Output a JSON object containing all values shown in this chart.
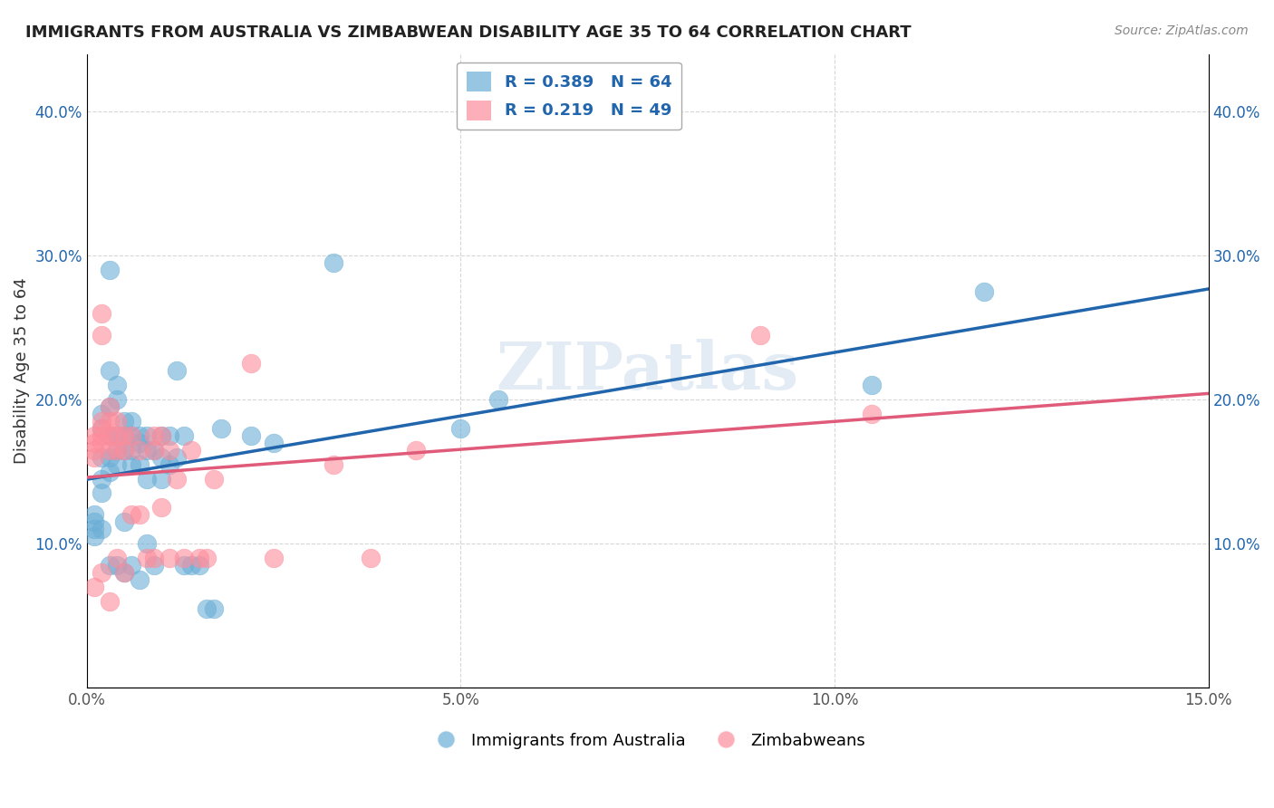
{
  "title": "IMMIGRANTS FROM AUSTRALIA VS ZIMBABWEAN DISABILITY AGE 35 TO 64 CORRELATION CHART",
  "source": "Source: ZipAtlas.com",
  "xlabel": "",
  "ylabel": "Disability Age 35 to 64",
  "xlim": [
    0.0,
    0.15
  ],
  "ylim": [
    0.0,
    0.44
  ],
  "xticks": [
    0.0,
    0.05,
    0.1,
    0.15
  ],
  "xticklabels": [
    "0.0%",
    "5.0%",
    "10.0%",
    "15.0%"
  ],
  "yticks": [
    0.0,
    0.1,
    0.2,
    0.3,
    0.4
  ],
  "yticklabels": [
    "",
    "10.0%",
    "20.0%",
    "30.0%",
    "40.0%"
  ],
  "blue_R": 0.389,
  "blue_N": 64,
  "pink_R": 0.219,
  "pink_N": 49,
  "blue_color": "#6baed6",
  "pink_color": "#fd8d9c",
  "blue_line_color": "#2166ac",
  "pink_line_color": "#e05a7a",
  "watermark": "ZIPatlas",
  "legend_label_blue": "Immigrants from Australia",
  "legend_label_pink": "Zimbabweans",
  "blue_x": [
    0.001,
    0.001,
    0.001,
    0.001,
    0.002,
    0.002,
    0.002,
    0.002,
    0.002,
    0.002,
    0.003,
    0.003,
    0.003,
    0.003,
    0.003,
    0.003,
    0.003,
    0.004,
    0.004,
    0.004,
    0.004,
    0.004,
    0.004,
    0.005,
    0.005,
    0.005,
    0.005,
    0.005,
    0.006,
    0.006,
    0.006,
    0.006,
    0.006,
    0.007,
    0.007,
    0.007,
    0.007,
    0.008,
    0.008,
    0.008,
    0.008,
    0.009,
    0.009,
    0.01,
    0.01,
    0.01,
    0.011,
    0.011,
    0.012,
    0.012,
    0.013,
    0.013,
    0.014,
    0.015,
    0.016,
    0.017,
    0.018,
    0.022,
    0.025,
    0.033,
    0.05,
    0.055,
    0.105,
    0.12
  ],
  "blue_y": [
    0.12,
    0.115,
    0.11,
    0.105,
    0.19,
    0.18,
    0.16,
    0.145,
    0.135,
    0.11,
    0.29,
    0.22,
    0.195,
    0.175,
    0.16,
    0.15,
    0.085,
    0.21,
    0.2,
    0.175,
    0.165,
    0.155,
    0.085,
    0.185,
    0.175,
    0.165,
    0.115,
    0.08,
    0.185,
    0.175,
    0.165,
    0.155,
    0.085,
    0.175,
    0.17,
    0.155,
    0.075,
    0.175,
    0.165,
    0.145,
    0.1,
    0.165,
    0.085,
    0.175,
    0.16,
    0.145,
    0.175,
    0.155,
    0.22,
    0.16,
    0.175,
    0.085,
    0.085,
    0.085,
    0.055,
    0.055,
    0.18,
    0.175,
    0.17,
    0.295,
    0.18,
    0.2,
    0.21,
    0.275
  ],
  "pink_x": [
    0.001,
    0.001,
    0.001,
    0.001,
    0.001,
    0.002,
    0.002,
    0.002,
    0.002,
    0.002,
    0.002,
    0.002,
    0.003,
    0.003,
    0.003,
    0.003,
    0.003,
    0.004,
    0.004,
    0.004,
    0.004,
    0.005,
    0.005,
    0.005,
    0.006,
    0.006,
    0.007,
    0.007,
    0.008,
    0.009,
    0.009,
    0.009,
    0.01,
    0.01,
    0.011,
    0.011,
    0.012,
    0.013,
    0.014,
    0.015,
    0.016,
    0.017,
    0.022,
    0.025,
    0.033,
    0.038,
    0.044,
    0.09,
    0.105
  ],
  "pink_y": [
    0.175,
    0.17,
    0.165,
    0.16,
    0.07,
    0.26,
    0.245,
    0.185,
    0.18,
    0.175,
    0.17,
    0.08,
    0.195,
    0.185,
    0.175,
    0.165,
    0.06,
    0.185,
    0.175,
    0.165,
    0.09,
    0.175,
    0.165,
    0.08,
    0.175,
    0.12,
    0.165,
    0.12,
    0.09,
    0.175,
    0.165,
    0.09,
    0.175,
    0.125,
    0.165,
    0.09,
    0.145,
    0.09,
    0.165,
    0.09,
    0.09,
    0.145,
    0.225,
    0.09,
    0.155,
    0.09,
    0.165,
    0.245,
    0.19
  ]
}
